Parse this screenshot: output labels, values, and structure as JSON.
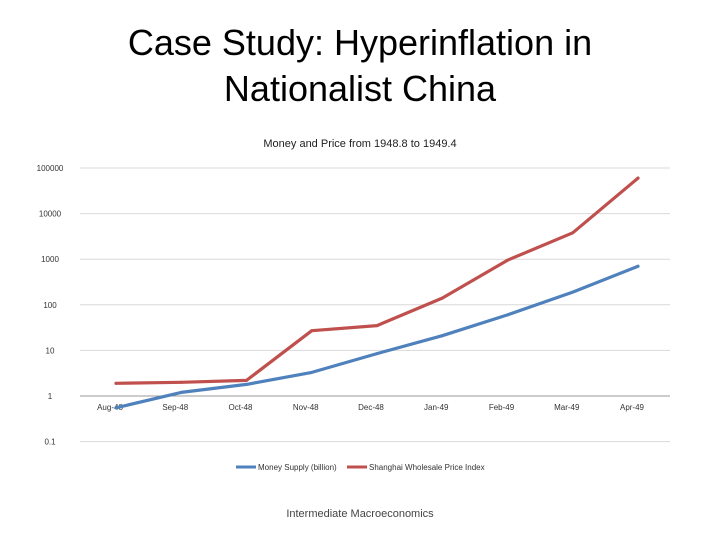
{
  "slide": {
    "title_line1": "Case Study: Hyperinflation in",
    "title_line2": "Nationalist China",
    "footer": "Intermediate Macroeconomics"
  },
  "chart_data": {
    "type": "line",
    "title": "Money and Price from 1948.8 to 1949.4",
    "xlabel": "",
    "ylabel": "",
    "y_scale": "log",
    "ylim": [
      0.1,
      100000
    ],
    "y_ticks": [
      "100000",
      "10000",
      "1000",
      "100",
      "10",
      "1",
      "0.1"
    ],
    "grid": true,
    "legend_position": "bottom",
    "categories": [
      "Aug-48",
      "Sep-48",
      "Oct-48",
      "Nov-48",
      "Dec-48",
      "Jan-49",
      "Feb-49",
      "Mar-49",
      "Apr-49"
    ],
    "series": [
      {
        "name": "Money Supply (billion)",
        "color": "#4f81bd",
        "values": [
          0.55,
          1.2,
          1.8,
          3.3,
          8.5,
          21,
          60,
          190,
          700
        ]
      },
      {
        "name": "Shanghai Wholesale Price Index",
        "color": "#c0504d",
        "values": [
          1.9,
          2.0,
          2.2,
          27,
          35,
          140,
          950,
          3800,
          60000
        ]
      }
    ]
  }
}
